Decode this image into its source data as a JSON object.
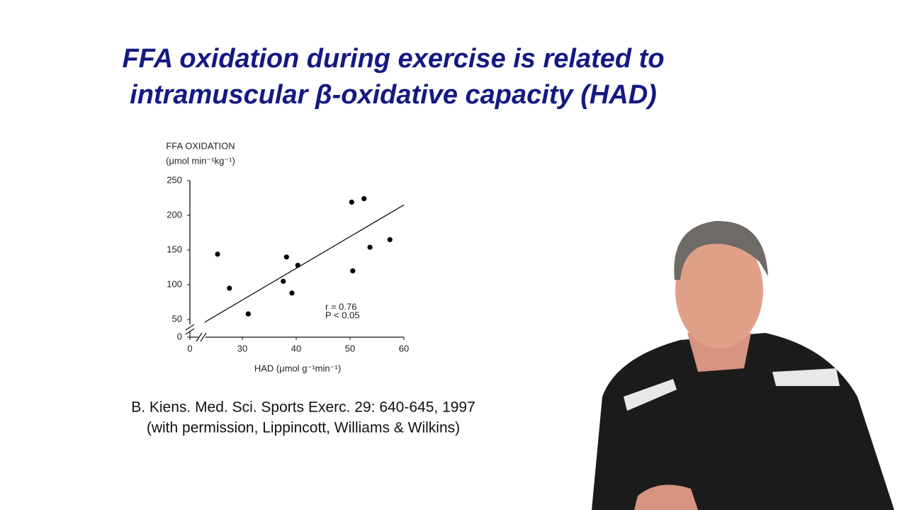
{
  "slide": {
    "title_lines": [
      "FFA oxidation during exercise is related to",
      "intramuscular β-oxidative capacity (HAD)"
    ],
    "citation_lines": [
      "B. Kiens.  Med. Sci. Sports Exerc. 29: 640-645, 1997",
      "(with permission, Lippincott, Williams & Wilkins)"
    ]
  },
  "chart_data": {
    "type": "scatter",
    "y_label_lines": [
      "FFA OXIDATION",
      "(μmol min⁻¹kg⁻¹)"
    ],
    "x_label": "HAD (μmol g⁻¹min⁻¹)",
    "annotations": [
      "r = 0.76",
      "P < 0.05"
    ],
    "x": [
      25.4,
      27.6,
      31.1,
      37.6,
      38.2,
      39.2,
      40.3,
      50.3,
      50.5,
      52.6,
      53.7,
      57.4
    ],
    "values": [
      144,
      95,
      58,
      105,
      140,
      88,
      128,
      219,
      120,
      224,
      154,
      165
    ],
    "color": "#000000",
    "fit_line": {
      "x": [
        23,
        60
      ],
      "y": [
        46,
        215
      ]
    },
    "xlim": [
      20,
      60
    ],
    "xticks": [
      0,
      30,
      40,
      50,
      60
    ],
    "ylim": [
      25,
      250
    ],
    "yticks": [
      0,
      50,
      100,
      150,
      200,
      250
    ],
    "axis_break": true,
    "grid": false
  }
}
